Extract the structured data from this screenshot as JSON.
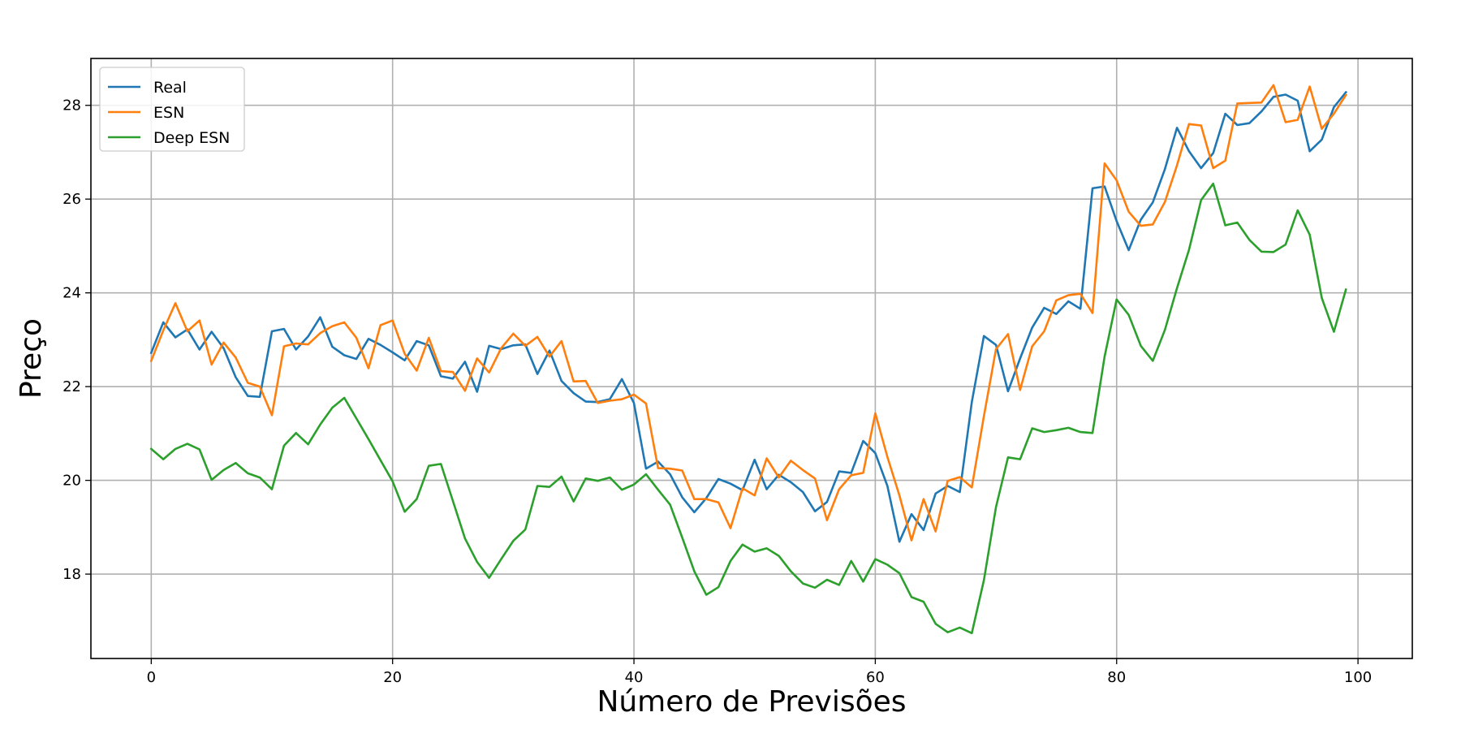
{
  "chart_data": {
    "type": "line",
    "title": "",
    "xlabel": "Número de Previsões",
    "ylabel": "Preço",
    "xlim": [
      -5,
      104.5
    ],
    "ylim": [
      16.2,
      29.0
    ],
    "xticks": [
      0,
      20,
      40,
      60,
      80,
      100
    ],
    "xtick_labels": [
      "0",
      "20",
      "40",
      "60",
      "80",
      "100"
    ],
    "yticks": [
      18,
      20,
      22,
      24,
      26,
      28
    ],
    "ytick_labels": [
      "18",
      "20",
      "22",
      "24",
      "26",
      "28"
    ],
    "grid": true,
    "legend_position": "top-left",
    "series": [
      {
        "name": "Real",
        "color": "#1f77b4",
        "values": [
          22.72,
          23.37,
          23.05,
          23.22,
          22.79,
          23.17,
          22.82,
          22.2,
          21.8,
          21.78,
          23.18,
          23.23,
          22.79,
          23.07,
          23.48,
          22.85,
          22.67,
          22.59,
          23.02,
          22.89,
          22.73,
          22.56,
          22.97,
          22.88,
          22.22,
          22.17,
          22.53,
          21.89,
          22.87,
          22.8,
          22.88,
          22.9,
          22.27,
          22.77,
          22.12,
          21.86,
          21.68,
          21.67,
          21.73,
          22.16,
          21.65,
          20.25,
          20.4,
          20.13,
          19.64,
          19.32,
          19.62,
          20.03,
          19.93,
          19.79,
          20.44,
          19.81,
          20.12,
          19.96,
          19.75,
          19.34,
          19.54,
          20.19,
          20.16,
          20.84,
          20.58,
          19.88,
          18.69,
          19.28,
          18.94,
          19.72,
          19.88,
          19.75,
          21.67,
          23.08,
          22.89,
          21.9,
          22.6,
          23.26,
          23.68,
          23.55,
          23.82,
          23.66,
          26.23,
          26.27,
          25.53,
          24.91,
          25.56,
          25.93,
          26.64,
          27.52,
          27.02,
          26.66,
          26.98,
          27.82,
          27.58,
          27.62,
          27.87,
          28.18,
          28.23,
          28.1,
          27.02,
          27.27,
          27.96,
          28.28
        ]
      },
      {
        "name": "ESN",
        "color": "#ff7f0e",
        "values": [
          22.55,
          23.2,
          23.78,
          23.18,
          23.41,
          22.47,
          22.94,
          22.62,
          22.08,
          22.0,
          21.39,
          22.86,
          22.92,
          22.9,
          23.14,
          23.29,
          23.37,
          23.04,
          22.39,
          23.31,
          23.41,
          22.7,
          22.34,
          23.04,
          22.33,
          22.31,
          21.91,
          22.6,
          22.3,
          22.82,
          23.13,
          22.87,
          23.06,
          22.64,
          22.97,
          22.11,
          22.12,
          21.65,
          21.7,
          21.73,
          21.83,
          21.64,
          20.26,
          20.25,
          20.21,
          19.6,
          19.6,
          19.53,
          18.98,
          19.83,
          19.68,
          20.47,
          20.06,
          20.42,
          20.22,
          20.04,
          19.15,
          19.81,
          20.11,
          20.16,
          21.43,
          20.5,
          19.68,
          18.72,
          19.6,
          18.91,
          19.99,
          20.07,
          19.85,
          21.37,
          22.8,
          23.12,
          21.93,
          22.86,
          23.18,
          23.84,
          23.95,
          23.98,
          23.57,
          26.76,
          26.4,
          25.73,
          25.43,
          25.46,
          25.94,
          26.72,
          27.6,
          27.57,
          26.66,
          26.82,
          28.04,
          28.05,
          28.06,
          28.43,
          27.64,
          27.69,
          28.4,
          27.5,
          27.82,
          28.22
        ]
      },
      {
        "name": "Deep ESN",
        "color": "#2ca02c",
        "values": [
          20.67,
          20.45,
          20.67,
          20.78,
          20.66,
          20.01,
          20.22,
          20.37,
          20.15,
          20.06,
          19.81,
          20.74,
          21.01,
          20.77,
          21.19,
          21.55,
          21.76,
          21.32,
          20.88,
          20.43,
          19.98,
          19.33,
          19.6,
          20.31,
          20.35,
          19.56,
          18.76,
          18.26,
          17.92,
          18.32,
          18.71,
          18.95,
          19.88,
          19.86,
          20.08,
          19.55,
          20.04,
          19.99,
          20.06,
          19.8,
          19.91,
          20.13,
          19.8,
          19.48,
          18.78,
          18.06,
          17.56,
          17.72,
          18.28,
          18.63,
          18.48,
          18.55,
          18.39,
          18.06,
          17.8,
          17.71,
          17.88,
          17.77,
          18.28,
          17.84,
          18.32,
          18.2,
          18.02,
          17.51,
          17.41,
          16.94,
          16.76,
          16.86,
          16.74,
          17.87,
          19.43,
          20.49,
          20.45,
          21.11,
          21.03,
          21.07,
          21.12,
          21.03,
          21.01,
          22.64,
          23.86,
          23.53,
          22.87,
          22.55,
          23.21,
          24.1,
          24.92,
          25.98,
          26.33,
          25.44,
          25.5,
          25.13,
          24.88,
          24.87,
          25.03,
          25.76,
          25.24,
          23.89,
          23.17,
          24.07
        ]
      }
    ]
  }
}
